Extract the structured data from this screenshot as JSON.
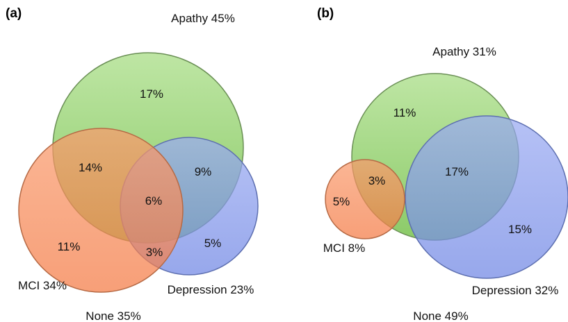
{
  "panels": {
    "a": {
      "label": "(a)",
      "sets": {
        "apathy": {
          "label": "Apathy 45%",
          "color": "#8fd16a"
        },
        "mci": {
          "label": "MCI 34%",
          "color": "#f7864f"
        },
        "depression": {
          "label": "Depression 23%",
          "color": "#7d92e8"
        }
      },
      "regions": {
        "apathy_only": "17%",
        "apathy_mci": "14%",
        "apathy_depression": "9%",
        "all_three": "6%",
        "mci_only": "11%",
        "mci_depression": "3%",
        "depression_only": "5%"
      },
      "none_label": "None 35%"
    },
    "b": {
      "label": "(b)",
      "sets": {
        "apathy": {
          "label": "Apathy 31%",
          "color": "#8fd16a"
        },
        "mci": {
          "label": "MCI 8%",
          "color": "#f7864f"
        },
        "depression": {
          "label": "Depression 32%",
          "color": "#7d92e8"
        }
      },
      "regions": {
        "apathy_only": "11%",
        "apathy_mci": "3%",
        "apathy_depression": "17%",
        "mci_only": "5%",
        "depression_only": "15%"
      },
      "none_label": "None 49%"
    }
  }
}
